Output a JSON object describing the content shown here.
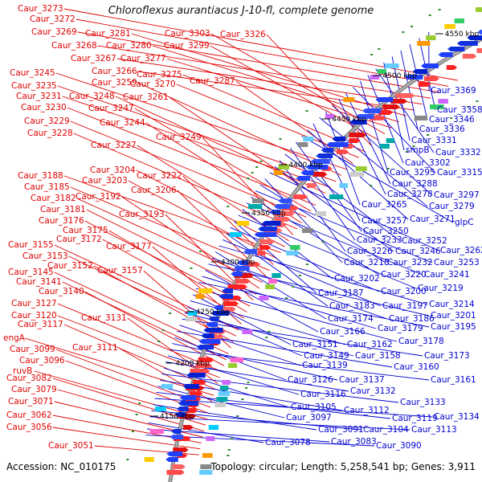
{
  "title": "Chloroflexus aurantiacus J-10-fl, complete genome",
  "footer": {
    "accession": "Accession: NC_010175",
    "summary": "Topology: circular; Length: 5,258,541 bp; Genes: 3,911"
  },
  "colors": {
    "forward_label": "#e00000",
    "reverse_label": "#0000d0",
    "backbone": "#888888"
  },
  "kbp_ticks": [
    "4550 kbp",
    "4500 kbp",
    "4450 kbp",
    "4400 kbp",
    "4350 kbp",
    "4300 kbp",
    "4250 kbp",
    "4200 kbp",
    "4150 kbp"
  ],
  "left_labels": [
    "Caur_3273",
    "Caur_3272",
    "Caur_3269",
    "Caur_3268",
    "Caur_3267",
    "Caur_3266",
    "Caur_3281",
    "Caur_3280",
    "Caur_3277",
    "Caur_3303",
    "Caur_3299",
    "Caur_3326",
    "Caur_3275",
    "Caur_3270",
    "Caur_3287",
    "Caur_3245",
    "Caur_3259",
    "Caur_3235",
    "Caur_3231",
    "Caur_3248",
    "Caur_3261",
    "Caur_3230",
    "Caur_3247",
    "Caur_3229",
    "Caur_3244",
    "Caur_3228",
    "Caur_3249",
    "Caur_3227",
    "Caur_3204",
    "Caur_3188",
    "Caur_3203",
    "Caur_3222",
    "Caur_3185",
    "Caur_3206",
    "Caur_3182",
    "Caur_3192",
    "Caur_3181",
    "Caur_3193",
    "Caur_3176",
    "Caur_3175",
    "Caur_3172",
    "Caur_3177",
    "Caur_3155",
    "Caur_3153",
    "Caur_3152",
    "Caur_3157",
    "Caur_3145",
    "Caur_3141",
    "Caur_3140",
    "Caur_3127",
    "Caur_3120",
    "Caur_3131",
    "Caur_3117",
    "engA",
    "Caur_3111",
    "Caur_3099",
    "Caur_3096",
    "ruvB",
    "Caur_3082",
    "Caur_3079",
    "Caur_3071",
    "Caur_3062",
    "Caur_3056",
    "Caur_3051"
  ],
  "right_labels": [
    "Caur_3369",
    "Caur_3358",
    "Caur_3346",
    "Caur_3336",
    "Caur_3331",
    "smpB",
    "Caur_3332",
    "Caur_3302",
    "Caur_3295",
    "Caur_3315",
    "Caur_3288",
    "Caur_3278",
    "Caur_3297",
    "Caur_3265",
    "Caur_3279",
    "Caur_3257",
    "Caur_3271",
    "glpC",
    "Caur_3250",
    "Caur_3233",
    "Caur_3252",
    "Caur_3226",
    "Caur_3246",
    "Caur_3262",
    "Caur_3218",
    "Caur_3232",
    "Caur_3253",
    "Caur_3220",
    "Caur_3241",
    "Caur_3202",
    "Caur_3219",
    "Caur_3187",
    "Caur_3200",
    "Caur_3183",
    "Caur_3197",
    "Caur_3214",
    "Caur_3174",
    "Caur_3186",
    "Caur_3201",
    "Caur_3166",
    "Caur_3179",
    "Caur_3195",
    "Caur_3178",
    "Caur_3151",
    "Caur_3162",
    "Caur_3149",
    "Caur_3158",
    "Caur_3173",
    "Caur_3139",
    "Caur_3160",
    "Caur_3126",
    "Caur_3137",
    "Caur_3161",
    "Caur_3116",
    "Caur_3132",
    "Caur_3105",
    "Caur_3133",
    "Caur_3112",
    "Caur_3097",
    "Caur_3119",
    "Caur_3134",
    "Caur_3091",
    "Caur_3104",
    "Caur_3113",
    "Caur_3078",
    "Caur_3083",
    "Caur_3090"
  ]
}
